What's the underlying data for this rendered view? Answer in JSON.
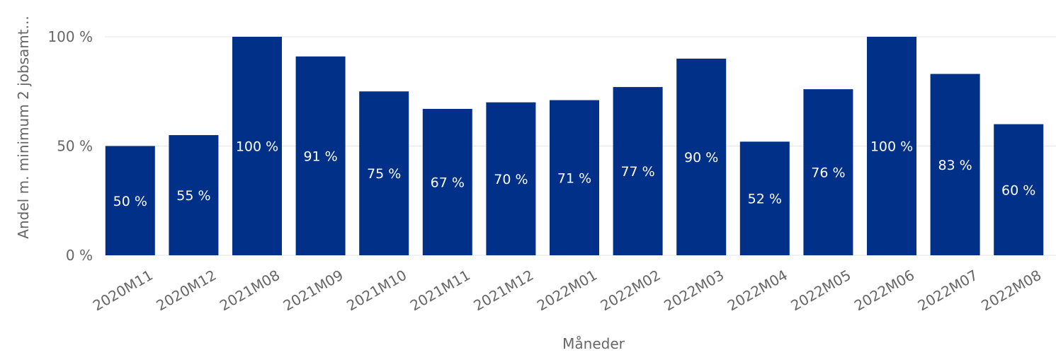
{
  "chart_data": {
    "type": "bar",
    "categories": [
      "2020M11",
      "2020M12",
      "2021M08",
      "2021M09",
      "2021M10",
      "2021M11",
      "2021M12",
      "2022M01",
      "2022M02",
      "2022M03",
      "2022M04",
      "2022M05",
      "2022M06",
      "2022M07",
      "2022M08"
    ],
    "values": [
      50,
      55,
      100,
      91,
      75,
      67,
      70,
      71,
      77,
      90,
      52,
      76,
      100,
      83,
      60
    ],
    "data_labels": [
      "50 %",
      "55 %",
      "100 %",
      "91 %",
      "75 %",
      "67 %",
      "70 %",
      "71 %",
      "77 %",
      "90 %",
      "52 %",
      "76 %",
      "100 %",
      "83 %",
      "60 %"
    ],
    "xlabel": "Måneder",
    "ylabel": "Andel m. minimum 2 jobsamt...",
    "ylim": [
      0,
      100
    ],
    "yticks": [
      0,
      50,
      100
    ],
    "ytick_labels": [
      "0 %",
      "50 %",
      "100 %"
    ],
    "bar_color": "#003087",
    "grid": true,
    "legend": false
  }
}
